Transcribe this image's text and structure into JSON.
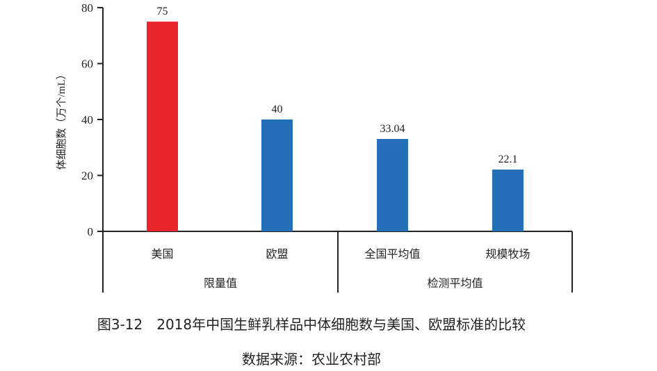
{
  "chart_data": {
    "type": "bar",
    "title": "图3-12　2018年中国生鲜乳样品中体细胞数与美国、欧盟标准的比较",
    "source": "数据来源：农业农村部",
    "ylabel": "体细胞数（万个/mL）",
    "xlabel": "",
    "ylim": [
      0,
      80
    ],
    "yticks": [
      0,
      20,
      40,
      60,
      80
    ],
    "grid": false,
    "categories": [
      "美国",
      "欧盟",
      "全国平均值",
      "规模牧场"
    ],
    "values": [
      75,
      40,
      33.04,
      22.1
    ],
    "value_labels": [
      "75",
      "40",
      "33.04",
      "22.1"
    ],
    "bar_colors": [
      "#e8262b",
      "#2470b8",
      "#2470b8",
      "#2470b8"
    ],
    "groups": [
      {
        "label": "限量值",
        "categories": [
          "美国",
          "欧盟"
        ]
      },
      {
        "label": "检测平均值",
        "categories": [
          "全国平均值",
          "规模牧场"
        ]
      }
    ]
  }
}
